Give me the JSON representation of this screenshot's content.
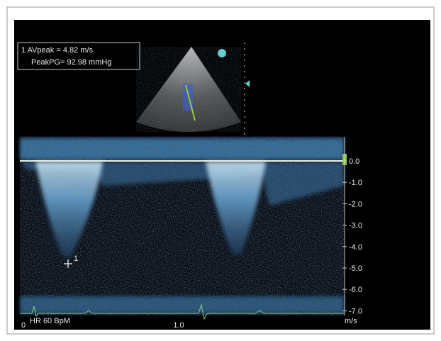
{
  "measurement": {
    "lines": [
      "1 AVpeak = 4.82 m/s",
      "PeakPG= 92.98 mmHg"
    ]
  },
  "velocity_scale": {
    "labels": [
      "0.0",
      "-1.0",
      "-2.0",
      "-3.0",
      "-4.0",
      "-5.0",
      "-6.0",
      "-7.0"
    ],
    "unit": "m/s"
  },
  "time_axis": {
    "labels": [
      "0",
      "1.0"
    ]
  },
  "heart_rate": "HR 60 BpM",
  "cursor_label": "1"
}
